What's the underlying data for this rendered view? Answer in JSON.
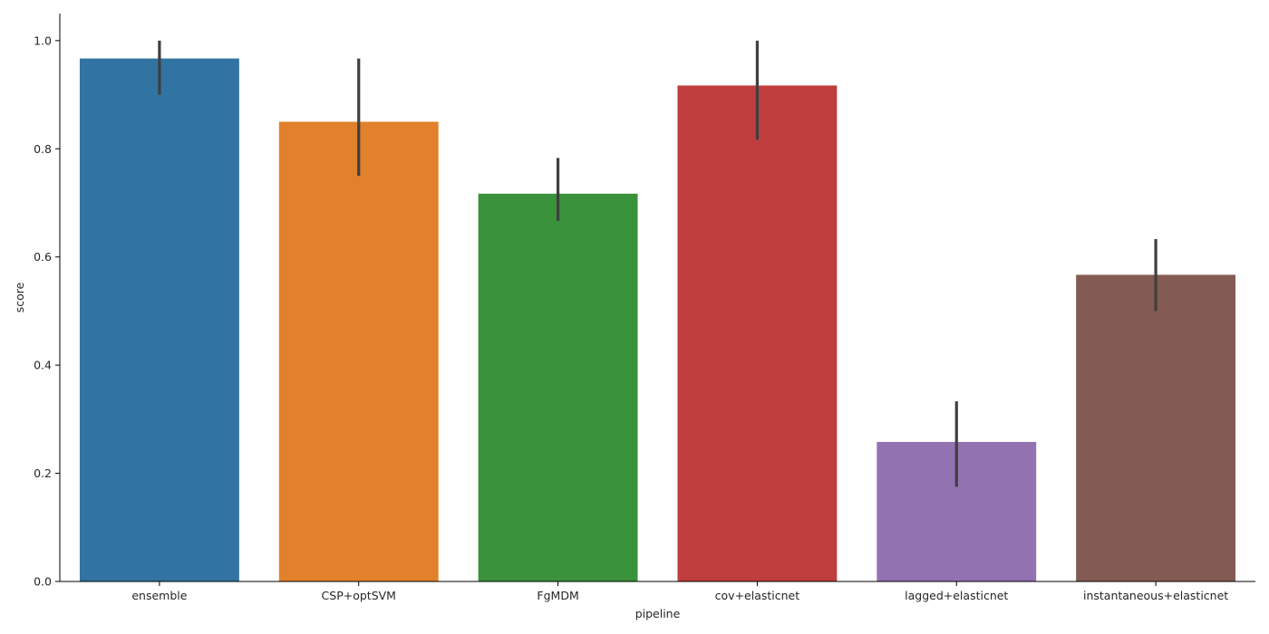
{
  "chart_data": {
    "type": "bar",
    "title": "",
    "xlabel": "pipeline",
    "ylabel": "score",
    "ylim": [
      0,
      1.05
    ],
    "yticks": [
      "0.0",
      "0.2",
      "0.4",
      "0.6",
      "0.8",
      "1.0"
    ],
    "grid": false,
    "categories": [
      "ensemble",
      "CSP+optSVM",
      "FgMDM",
      "cov+elasticnet",
      "lagged+elasticnet",
      "instantaneous+elasticnet"
    ],
    "values": [
      0.967,
      0.85,
      0.717,
      0.917,
      0.258,
      0.567
    ],
    "error_low": [
      0.9,
      0.75,
      0.667,
      0.817,
      0.175,
      0.5
    ],
    "error_high": [
      1.0,
      0.967,
      0.783,
      1.0,
      0.333,
      0.633
    ],
    "colors": [
      "#3274a1",
      "#e1812c",
      "#3a923a",
      "#c03d3e",
      "#9372b2",
      "#845b53"
    ],
    "error_color": "#3f3f3f"
  }
}
